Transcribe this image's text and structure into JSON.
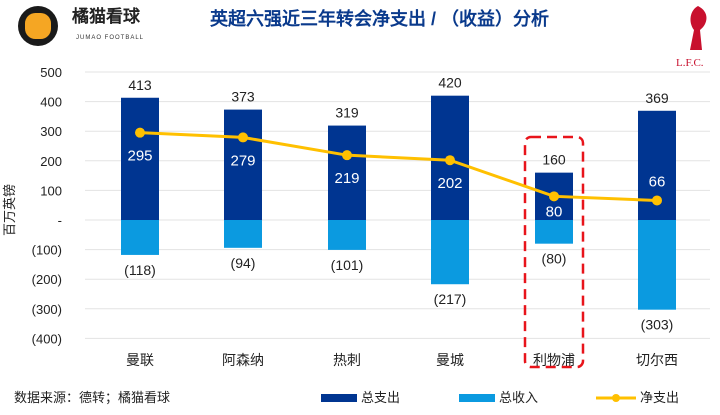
{
  "header": {
    "brand": "橘猫看球",
    "brand_sub": "JUMAO FOOTBALL",
    "title": "英超六强近三年转会净支出 / （收益）分析",
    "club_logo_text": "L.F.C."
  },
  "footer": {
    "source": "数据来源：德转；橘猫看球"
  },
  "colors": {
    "spend": "#003591",
    "income": "#0b9ae0",
    "net": "#ffc000",
    "highlight": "#e8141b"
  },
  "chart_data": {
    "type": "bar",
    "title": "英超六强近三年转会净支出 / （收益）分析",
    "ylabel": "百万英镑",
    "ylim": [
      -400,
      500
    ],
    "yticks": [
      500,
      400,
      300,
      200,
      100,
      0,
      -100,
      -200,
      -300,
      -400
    ],
    "ytick_labels": [
      "500",
      "400",
      "300",
      "200",
      "100",
      "-",
      "(100)",
      "(200)",
      "(300)",
      "(400)"
    ],
    "categories": [
      "曼联",
      "阿森纳",
      "热刺",
      "曼城",
      "利物浦",
      "切尔西"
    ],
    "highlight": "利物浦",
    "series": [
      {
        "name": "总支出",
        "type": "bar",
        "values": [
          413,
          373,
          319,
          420,
          160,
          369
        ],
        "labels": [
          "413",
          "373",
          "319",
          "420",
          "160",
          "369"
        ]
      },
      {
        "name": "总收入",
        "type": "bar",
        "values": [
          -118,
          -94,
          -101,
          -217,
          -80,
          -303
        ],
        "labels": [
          "(118)",
          "(94)",
          "(101)",
          "(217)",
          "(80)",
          "(303)"
        ]
      },
      {
        "name": "净支出",
        "type": "line",
        "values": [
          295,
          279,
          219,
          202,
          80,
          66
        ],
        "labels": [
          "295",
          "279",
          "219",
          "202",
          "80",
          "66"
        ]
      }
    ],
    "legend": "bottom-right"
  }
}
